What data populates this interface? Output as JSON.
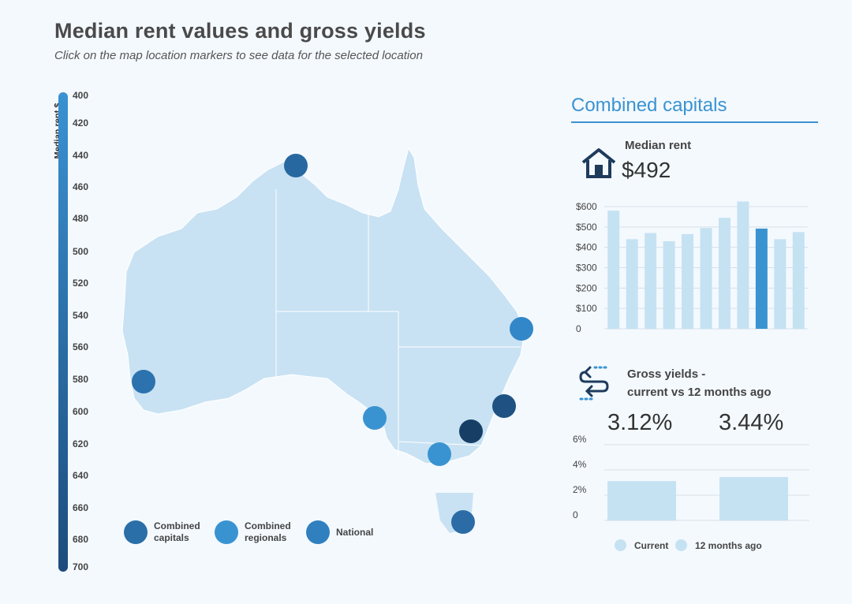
{
  "header": {
    "title": "Median rent values and gross yields",
    "subtitle": "Click on the map location markers to see data for the selected location"
  },
  "scale": {
    "label": "Median rent $",
    "ticks": [
      "400",
      "420",
      "440",
      "460",
      "480",
      "500",
      "520",
      "540",
      "560",
      "580",
      "600",
      "620",
      "640",
      "660",
      "680",
      "700"
    ]
  },
  "map": {
    "markers": [
      {
        "name": "marker-darwin",
        "color": "#2868a0"
      },
      {
        "name": "marker-brisbane",
        "color": "#3287c8"
      },
      {
        "name": "marker-perth",
        "color": "#2b72ae"
      },
      {
        "name": "marker-sydney",
        "color": "#1f5283"
      },
      {
        "name": "marker-canberra",
        "color": "#173f66"
      },
      {
        "name": "marker-adelaide",
        "color": "#3a93d1"
      },
      {
        "name": "marker-melbourne",
        "color": "#3a93d1"
      },
      {
        "name": "marker-hobart",
        "color": "#2b6ca6"
      }
    ],
    "legend": [
      {
        "label": "Combined\ncapitals",
        "color": "#2a6fa8"
      },
      {
        "label": "Combined\nregionals",
        "color": "#3a93d1"
      },
      {
        "label": "National",
        "color": "#3080c0"
      }
    ]
  },
  "panel": {
    "title": "Combined capitals",
    "median_rent_label": "Median rent",
    "median_rent_value": "$492",
    "gross_yields_label_1": "Gross yields -",
    "gross_yields_label_2": "current vs 12 months ago",
    "yield_current": "3.12%",
    "yield_previous": "3.44%",
    "legend_current": "Current",
    "legend_previous": "12 months ago",
    "bar_color": "#c5e2f3",
    "highlight_color": "#3a93d1"
  },
  "chart_data": [
    {
      "type": "bar",
      "yticks": [
        "0",
        "$100",
        "$200",
        "$300",
        "$400",
        "$500",
        "$600"
      ],
      "ylim": [
        0,
        600
      ],
      "values": [
        580,
        440,
        470,
        430,
        465,
        495,
        545,
        625,
        492,
        440,
        475
      ],
      "highlight_index": 8
    },
    {
      "type": "bar",
      "yticks": [
        "0",
        "2%",
        "4%",
        "6%"
      ],
      "ylim": [
        0,
        6
      ],
      "categories": [
        "Current",
        "12 months ago"
      ],
      "values": [
        3.12,
        3.44
      ]
    }
  ]
}
